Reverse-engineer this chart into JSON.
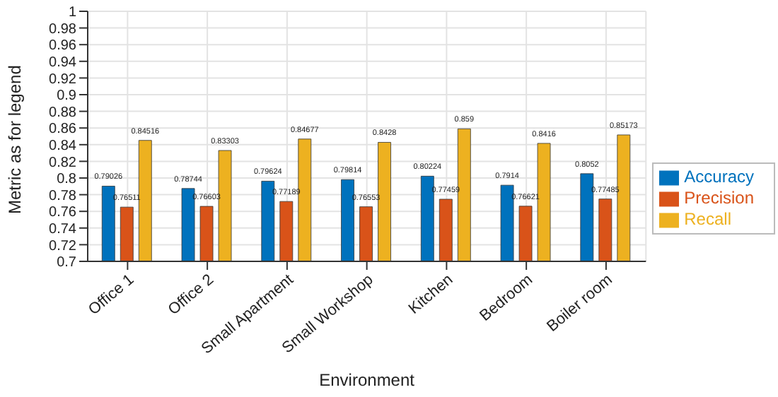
{
  "chart_data": {
    "type": "bar",
    "xlabel": "Environment",
    "ylabel": "Metric as for legend",
    "categories": [
      "Office 1",
      "Office 2",
      "Small Apartment",
      "Small Workshop",
      "Kitchen",
      "Bedroom",
      "Boiler room"
    ],
    "series": [
      {
        "name": "Accuracy",
        "color": "#0072bd",
        "values": [
          0.79026,
          0.78744,
          0.79624,
          0.79814,
          0.80224,
          0.7914,
          0.8052
        ]
      },
      {
        "name": "Precision",
        "color": "#d95319",
        "values": [
          0.76511,
          0.76603,
          0.77189,
          0.76553,
          0.77459,
          0.76621,
          0.77485
        ]
      },
      {
        "name": "Recall",
        "color": "#edb120",
        "values": [
          0.84516,
          0.83303,
          0.84677,
          0.8428,
          0.859,
          0.8416,
          0.85173
        ]
      }
    ],
    "ylim": [
      0.7,
      1
    ],
    "yticks": [
      0.7,
      0.72,
      0.74,
      0.76,
      0.78,
      0.8,
      0.82,
      0.84,
      0.86,
      0.88,
      0.9,
      0.92,
      0.94,
      0.96,
      0.98,
      1
    ],
    "grid": true,
    "legend": "right",
    "data_labels": true
  }
}
